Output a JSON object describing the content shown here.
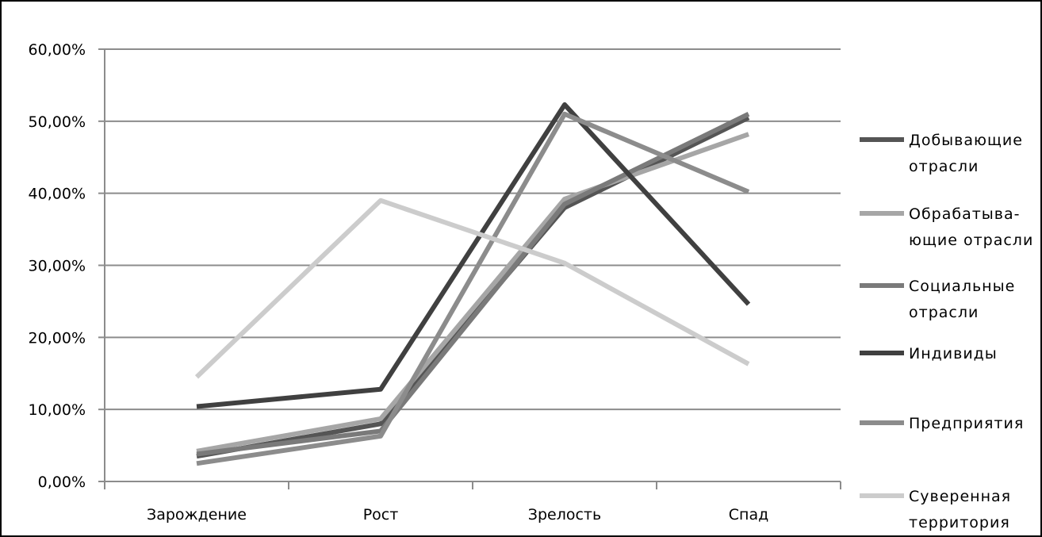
{
  "chart_data": {
    "type": "line",
    "categories": [
      "Зарождение",
      "Рост",
      "Зрелость",
      "Спад"
    ],
    "y_tick_labels": [
      "0,00%",
      "10,00%",
      "20,00%",
      "30,00%",
      "40,00%",
      "50,00%",
      "60,00%"
    ],
    "ylim": [
      0,
      60
    ],
    "grid": "horizontal",
    "legend_position": "right",
    "series": [
      {
        "name": "Добывающие отрасли",
        "label_lines": [
          "Добывающие",
          "отрасли"
        ],
        "color": "#555555",
        "values": [
          3.5,
          8.0,
          38.0,
          50.5
        ]
      },
      {
        "name": "Обрабатыва-ющие отрасли",
        "label_lines": [
          "Обрабатыва-",
          "ющие отрасли"
        ],
        "color": "#a6a6a6",
        "values": [
          4.2,
          8.7,
          39.2,
          48.2
        ]
      },
      {
        "name": "Социальные отрасли",
        "label_lines": [
          "Социальные",
          "отрасли"
        ],
        "color": "#7a7a7a",
        "values": [
          3.8,
          7.0,
          38.5,
          51.0
        ]
      },
      {
        "name": "Индивиды",
        "label_lines": [
          "Индивиды"
        ],
        "color": "#404040",
        "values": [
          10.4,
          12.8,
          52.3,
          24.6
        ]
      },
      {
        "name": "Предприятия",
        "label_lines": [
          "Предприятия"
        ],
        "color": "#8c8c8c",
        "values": [
          2.5,
          6.3,
          51.0,
          40.2
        ]
      },
      {
        "name": "Суверенная территория",
        "label_lines": [
          "Суверенная",
          "территория"
        ],
        "color": "#cccccc",
        "values": [
          14.5,
          39.0,
          30.3,
          16.3
        ]
      }
    ]
  }
}
